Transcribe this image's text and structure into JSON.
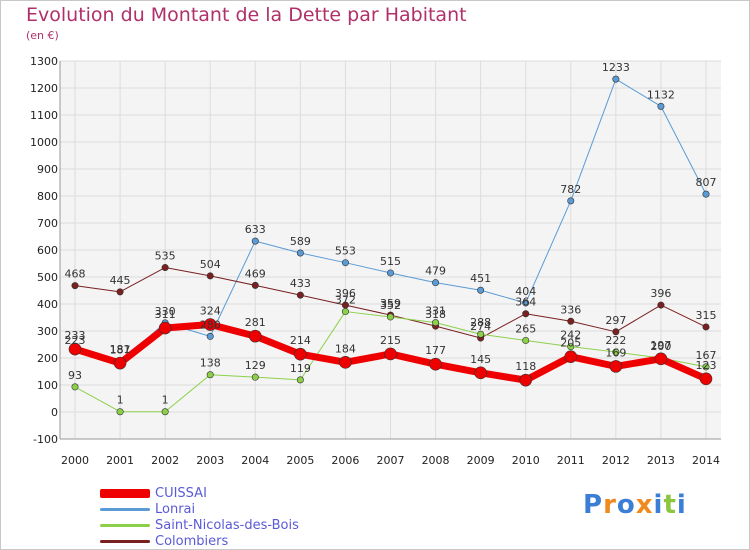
{
  "title": "Evolution du Montant de la Dette par Habitant",
  "subtitle": "(en €)",
  "logo": {
    "text": "Proxiti",
    "colors": [
      "#3a7fd5",
      "#f08a1e",
      "#3a7fd5",
      "#f08a1e",
      "#3a7fd5",
      "#8cc63f",
      "#3a7fd5"
    ]
  },
  "chart_data": {
    "type": "line",
    "x": [
      "2000",
      "2001",
      "2002",
      "2003",
      "2004",
      "2005",
      "2006",
      "2007",
      "2008",
      "2009",
      "2010",
      "2011",
      "2012",
      "2013",
      "2014"
    ],
    "ylim": [
      -100,
      1300
    ],
    "yticks": [
      -100,
      0,
      100,
      200,
      300,
      400,
      500,
      600,
      700,
      800,
      900,
      1000,
      1100,
      1200,
      1300
    ],
    "grid": true,
    "legend_position": "bottom-left",
    "series": [
      {
        "name": "Lonrai",
        "color": "#5a9bd5",
        "width": 1,
        "values": [
          223,
          187,
          330,
          280,
          633,
          589,
          553,
          515,
          479,
          451,
          404,
          782,
          1233,
          1132,
          807
        ]
      },
      {
        "name": "Colombiers",
        "color": "#7a2020",
        "width": 1,
        "values": [
          468,
          445,
          535,
          504,
          469,
          433,
          396,
          359,
          318,
          274,
          364,
          336,
          297,
          396,
          315
        ]
      },
      {
        "name": "Saint-Nicolas-des-Bois",
        "color": "#8cd04a",
        "width": 1,
        "values": [
          93,
          1,
          1,
          138,
          129,
          119,
          372,
          352,
          331,
          288,
          265,
          242,
          222,
          200,
          167
        ]
      },
      {
        "name": "CUISSAI",
        "color": "#ee0000",
        "width": 7,
        "values": [
          233,
          181,
          311,
          324,
          281,
          214,
          184,
          215,
          177,
          145,
          118,
          205,
          169,
          197,
          123
        ]
      }
    ],
    "legend_order": [
      "CUISSAI",
      "Lonrai",
      "Saint-Nicolas-des-Bois",
      "Colombiers"
    ]
  }
}
